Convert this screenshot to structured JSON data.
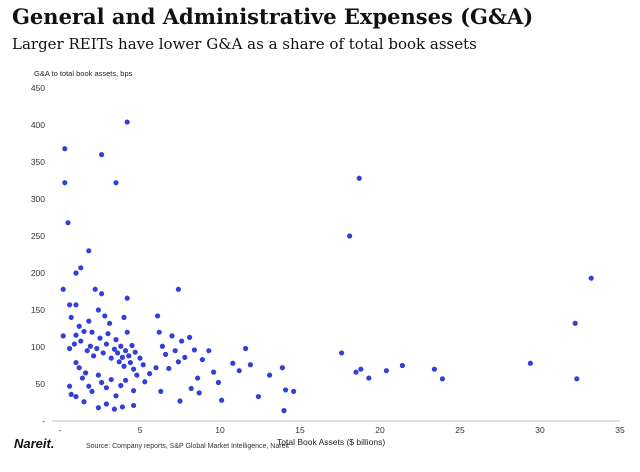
{
  "title": "General and Administrative Expenses (G&A)",
  "subtitle": "Larger REITs have lower G&A as a share of total book assets",
  "source": "Source: Company reports, S&P Global Market Intelligence, Nareit",
  "logo_text": "Nareit.",
  "colors": {
    "points": "#3340d6",
    "axis": "#bfbfbf"
  },
  "chart_data": {
    "type": "scatter",
    "ylabel": "G&A to total book assets, bps",
    "xlabel": "Total Book Assets ($ billions)",
    "xlim": [
      -0.5,
      35
    ],
    "ylim": [
      0,
      450
    ],
    "xticks": [
      0,
      5,
      10,
      15,
      20,
      25,
      30,
      35
    ],
    "xtick_labels": [
      "-",
      "5",
      "10",
      "15",
      "20",
      "25",
      "30",
      "35"
    ],
    "yticks": [
      0,
      50,
      100,
      150,
      200,
      250,
      300,
      350,
      400,
      450
    ],
    "ytick_labels": [
      "-",
      "50",
      "100",
      "150",
      "200",
      "250",
      "300",
      "350",
      "400",
      "450"
    ],
    "grid": false,
    "points": [
      [
        0.3,
        368
      ],
      [
        0.3,
        322
      ],
      [
        0.5,
        268
      ],
      [
        1.0,
        200
      ],
      [
        1.3,
        207
      ],
      [
        2.6,
        360
      ],
      [
        3.5,
        322
      ],
      [
        4.2,
        404
      ],
      [
        1.8,
        230
      ],
      [
        0.2,
        178
      ],
      [
        0.6,
        157
      ],
      [
        1.0,
        157
      ],
      [
        2.2,
        178
      ],
      [
        2.6,
        172
      ],
      [
        4.2,
        166
      ],
      [
        7.4,
        178
      ],
      [
        0.7,
        140
      ],
      [
        1.2,
        128
      ],
      [
        1.8,
        135
      ],
      [
        2.0,
        120
      ],
      [
        2.4,
        150
      ],
      [
        2.8,
        142
      ],
      [
        3.1,
        132
      ],
      [
        4.0,
        140
      ],
      [
        6.1,
        142
      ],
      [
        0.2,
        115
      ],
      [
        0.6,
        98
      ],
      [
        0.9,
        104
      ],
      [
        1.0,
        116
      ],
      [
        1.3,
        108
      ],
      [
        1.5,
        121
      ],
      [
        1.7,
        95
      ],
      [
        1.9,
        101
      ],
      [
        2.1,
        88
      ],
      [
        2.3,
        98
      ],
      [
        2.5,
        112
      ],
      [
        2.7,
        92
      ],
      [
        2.9,
        104
      ],
      [
        3.0,
        118
      ],
      [
        3.2,
        85
      ],
      [
        3.4,
        97
      ],
      [
        3.5,
        110
      ],
      [
        3.6,
        92
      ],
      [
        3.7,
        80
      ],
      [
        3.8,
        101
      ],
      [
        3.9,
        86
      ],
      [
        4.0,
        74
      ],
      [
        4.1,
        95
      ],
      [
        4.2,
        120
      ],
      [
        4.3,
        88
      ],
      [
        4.4,
        79
      ],
      [
        4.5,
        102
      ],
      [
        4.6,
        70
      ],
      [
        4.7,
        93
      ],
      [
        4.8,
        62
      ],
      [
        5.0,
        85
      ],
      [
        5.2,
        76
      ],
      [
        5.6,
        64
      ],
      [
        6.0,
        72
      ],
      [
        6.2,
        120
      ],
      [
        6.4,
        101
      ],
      [
        6.6,
        90
      ],
      [
        6.8,
        71
      ],
      [
        7.0,
        115
      ],
      [
        7.2,
        95
      ],
      [
        7.4,
        80
      ],
      [
        7.6,
        108
      ],
      [
        7.8,
        86
      ],
      [
        8.1,
        113
      ],
      [
        8.4,
        96
      ],
      [
        8.6,
        58
      ],
      [
        8.9,
        83
      ],
      [
        9.3,
        95
      ],
      [
        9.6,
        66
      ],
      [
        9.9,
        52
      ],
      [
        1.0,
        79
      ],
      [
        1.2,
        72
      ],
      [
        1.4,
        58
      ],
      [
        1.6,
        65
      ],
      [
        1.8,
        47
      ],
      [
        2.0,
        40
      ],
      [
        2.4,
        62
      ],
      [
        2.6,
        52
      ],
      [
        2.9,
        45
      ],
      [
        3.2,
        56
      ],
      [
        3.5,
        34
      ],
      [
        3.8,
        48
      ],
      [
        4.1,
        55
      ],
      [
        4.6,
        41
      ],
      [
        5.3,
        53
      ],
      [
        6.3,
        40
      ],
      [
        7.5,
        27
      ],
      [
        8.2,
        44
      ],
      [
        8.7,
        38
      ],
      [
        0.6,
        47
      ],
      [
        0.7,
        36
      ],
      [
        1.0,
        33
      ],
      [
        1.5,
        26
      ],
      [
        2.4,
        18
      ],
      [
        2.9,
        23
      ],
      [
        3.4,
        16
      ],
      [
        3.9,
        19
      ],
      [
        4.6,
        21
      ],
      [
        10.1,
        28
      ],
      [
        10.8,
        78
      ],
      [
        11.2,
        68
      ],
      [
        11.6,
        98
      ],
      [
        11.9,
        76
      ],
      [
        12.4,
        33
      ],
      [
        13.1,
        62
      ],
      [
        13.9,
        72
      ],
      [
        14.1,
        42
      ],
      [
        14.6,
        40
      ],
      [
        14.0,
        14
      ],
      [
        17.6,
        92
      ],
      [
        18.1,
        250
      ],
      [
        18.5,
        66
      ],
      [
        18.7,
        328
      ],
      [
        18.8,
        70
      ],
      [
        19.3,
        58
      ],
      [
        20.4,
        68
      ],
      [
        21.4,
        75
      ],
      [
        23.4,
        70
      ],
      [
        23.9,
        57
      ],
      [
        29.4,
        78
      ],
      [
        32.2,
        132
      ],
      [
        32.3,
        57
      ],
      [
        33.2,
        193
      ]
    ]
  }
}
